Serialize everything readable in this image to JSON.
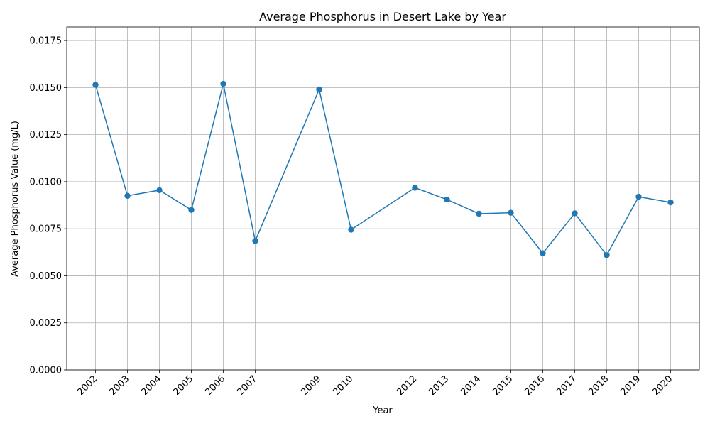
{
  "chart_data": {
    "type": "line",
    "title": "Average Phosphorus in Desert Lake by Year",
    "xlabel": "Year",
    "ylabel": "Average Phosphorus Value (mg/L)",
    "x": [
      2002,
      2003,
      2004,
      2005,
      2006,
      2007,
      2009,
      2010,
      2012,
      2013,
      2014,
      2015,
      2016,
      2017,
      2018,
      2019,
      2020
    ],
    "series": [
      {
        "name": "",
        "color": "#1f77b4",
        "values": [
          0.01515,
          0.00925,
          0.00955,
          0.0085,
          0.0152,
          0.00685,
          0.0149,
          0.00745,
          0.00968,
          0.00905,
          0.0083,
          0.00835,
          0.0062,
          0.00832,
          0.0061,
          0.0092,
          0.0089
        ]
      }
    ],
    "xlim": [
      2001.1,
      2020.9
    ],
    "ylim": [
      0,
      0.01822
    ],
    "yticks": [
      0.0,
      0.0025,
      0.005,
      0.0075,
      0.01,
      0.0125,
      0.015,
      0.0175
    ],
    "ytick_labels": [
      "0.0000",
      "0.0025",
      "0.0050",
      "0.0075",
      "0.0100",
      "0.0125",
      "0.0150",
      "0.0175"
    ],
    "xtick_labels": [
      "2002",
      "2003",
      "2004",
      "2005",
      "2006",
      "2007",
      "2009",
      "2010",
      "2012",
      "2013",
      "2014",
      "2015",
      "2016",
      "2017",
      "2018",
      "2019",
      "2020"
    ],
    "grid": true,
    "legend": "none"
  }
}
